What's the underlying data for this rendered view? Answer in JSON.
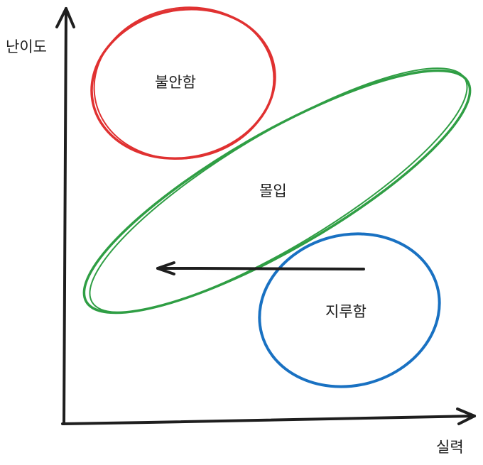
{
  "axes": {
    "y_label": "난이도",
    "x_label": "실력"
  },
  "regions": [
    {
      "label": "불안함",
      "color": "#e03131"
    },
    {
      "label": "몰입",
      "color": "#2f9e44"
    },
    {
      "label": "지루함",
      "color": "#1971c2"
    }
  ],
  "arrow": {
    "direction": "left",
    "color": "#1e1e1e"
  }
}
